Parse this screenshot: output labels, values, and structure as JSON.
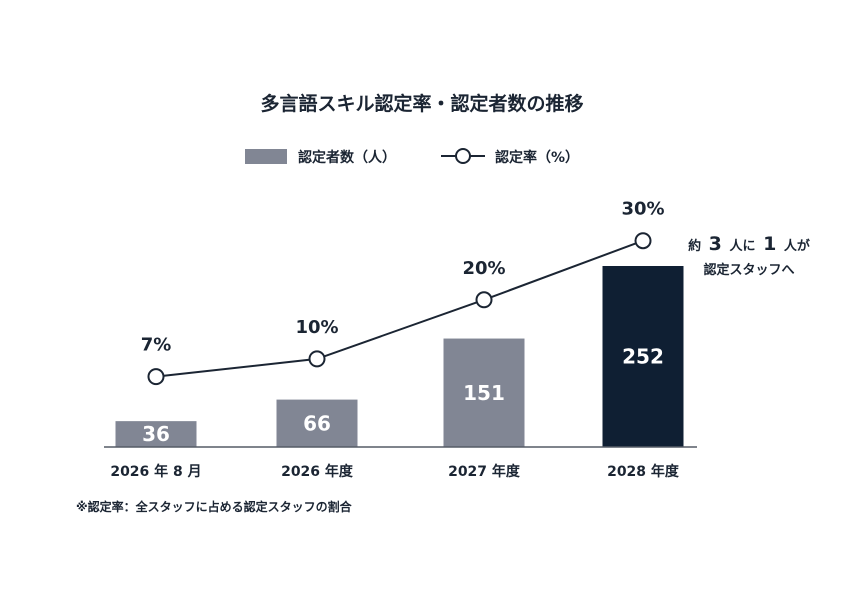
{
  "chart_data": {
    "type": "bar+line",
    "title": "多言語スキル認定率・認定者数の推移",
    "categories": [
      "2026 年 8 月",
      "2026 年度",
      "2027 年度",
      "2028 年度"
    ],
    "series": [
      {
        "name": "認定者数（人）",
        "type": "bar",
        "values": [
          36,
          66,
          151,
          252
        ],
        "labels": [
          "36",
          "66",
          "151",
          "252"
        ]
      },
      {
        "name": "認定率（%）",
        "type": "line",
        "values": [
          7,
          10,
          20,
          30
        ],
        "labels": [
          "7%",
          "10%",
          "20%",
          "30%"
        ]
      }
    ],
    "annotation": {
      "line1_prefix": "約",
      "line1_num1": "3",
      "line1_mid": "人に",
      "line1_num2": "1",
      "line1_suffix": "人が",
      "line2": "認定スタッフへ"
    },
    "footnote": "※認定率：全スタッフに占める認定スタッフの割合",
    "legend_position": "top-center",
    "grid": false,
    "colors": {
      "bar": "#818694",
      "bar_highlight": "#0f1f33",
      "line": "#1b2533",
      "marker_fill": "#ffffff",
      "bar_label": "#ffffff"
    }
  }
}
